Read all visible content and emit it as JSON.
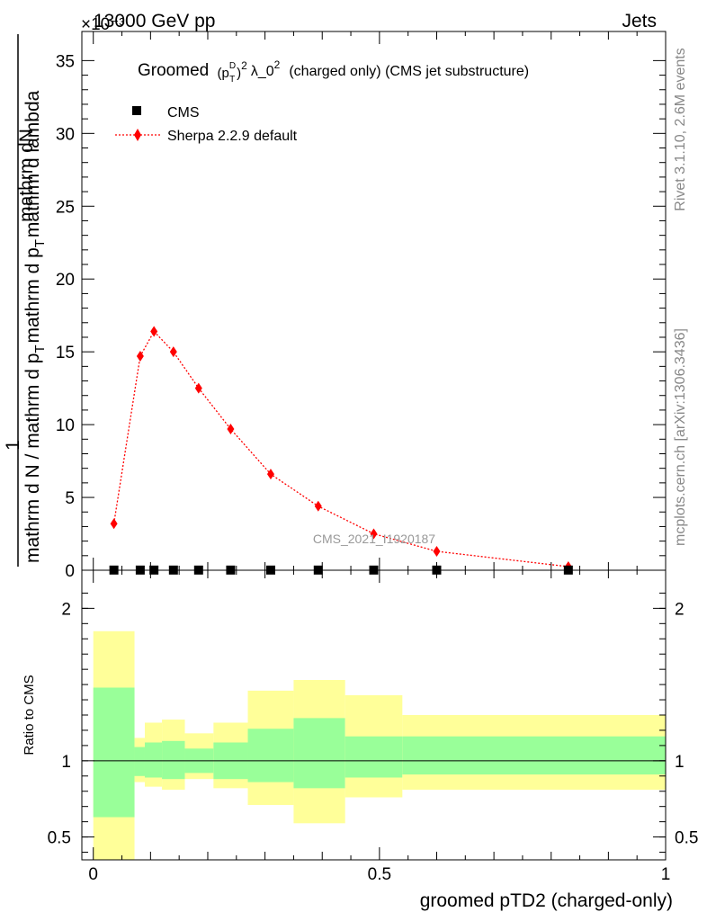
{
  "header": {
    "left": "13000 GeV pp",
    "right": "Jets",
    "exponent_label": "×10⁻³"
  },
  "side_labels": {
    "rivet": "Rivet 3.1.10,  2.6M events",
    "mcplots": "mcplots.cern.ch [arXiv:1306.3436]"
  },
  "watermark": "CMS_2021_I1920187",
  "colors": {
    "sherpa": "#ff0000",
    "cms": "#000000",
    "band_inner": "#99ff99",
    "band_outer": "#ffff99"
  },
  "chart_data": [
    {
      "type": "line",
      "title_parts": [
        "Groomed",
        "(p",
        "D",
        "T",
        ")",
        "2",
        "λ_0",
        "2",
        "(charged only) (CMS jet substructure)"
      ],
      "ylabel_num": "mathrm dN",
      "ylabel_one": "1",
      "ylabel_den": "mathrm d N / mathrm d p",
      "ylabel_den_sub1": "T",
      "ylabel_den_mid": "mathrm d p",
      "ylabel_den_sub2": "T",
      "ylabel_den_end": "mathrm d lambda",
      "ylim": [
        0,
        37
      ],
      "yticks": [
        0,
        5,
        10,
        15,
        20,
        25,
        30,
        35
      ],
      "ytick_labels": [
        "0",
        "5",
        "10",
        "15",
        "20",
        "25",
        "30",
        "35"
      ],
      "xlim": [
        -0.02,
        1.0
      ],
      "legend": [
        {
          "name": "CMS",
          "marker": "square"
        },
        {
          "name": "Sherpa 2.2.9 default",
          "marker": "diamond"
        }
      ],
      "series": [
        {
          "name": "Sherpa 2.2.9 default",
          "x": [
            0.036,
            0.082,
            0.106,
            0.14,
            0.184,
            0.24,
            0.31,
            0.393,
            0.49,
            0.6,
            0.83
          ],
          "y": [
            3.2,
            14.7,
            16.4,
            15.0,
            12.5,
            9.7,
            6.6,
            4.4,
            2.5,
            1.3,
            0.25
          ]
        },
        {
          "name": "CMS",
          "x": [
            0.036,
            0.082,
            0.106,
            0.14,
            0.184,
            0.24,
            0.31,
            0.393,
            0.49,
            0.6,
            0.83
          ],
          "y": [
            0.012,
            0.012,
            0.012,
            0.012,
            0.012,
            0.012,
            0.012,
            0.012,
            0.012,
            0.012,
            0.012
          ]
        }
      ]
    },
    {
      "type": "area",
      "ylabel": "Ratio to CMS",
      "xlabel": "groomed pTD2 (charged-only)",
      "xlim": [
        -0.02,
        1.0
      ],
      "ylim": [
        0.35,
        2.25
      ],
      "xticks": [
        0,
        0.5,
        1
      ],
      "xtick_labels": [
        "0",
        "0.5",
        "1"
      ],
      "yticks": [
        0.5,
        1,
        2
      ],
      "ytick_labels": [
        "0.5",
        "1",
        "2"
      ],
      "reference": 1,
      "bins": [
        {
          "lo": 0.0,
          "hi": 0.072,
          "in_lo": 0.63,
          "in_hi": 1.48,
          "out_lo": 0.0,
          "out_hi": 1.85
        },
        {
          "lo": 0.072,
          "hi": 0.09,
          "in_lo": 0.9,
          "in_hi": 1.09,
          "out_lo": 0.86,
          "out_hi": 1.15
        },
        {
          "lo": 0.09,
          "hi": 0.12,
          "in_lo": 0.89,
          "in_hi": 1.12,
          "out_lo": 0.83,
          "out_hi": 1.25
        },
        {
          "lo": 0.12,
          "hi": 0.16,
          "in_lo": 0.88,
          "in_hi": 1.13,
          "out_lo": 0.81,
          "out_hi": 1.27
        },
        {
          "lo": 0.16,
          "hi": 0.21,
          "in_lo": 0.92,
          "in_hi": 1.08,
          "out_lo": 0.88,
          "out_hi": 1.18
        },
        {
          "lo": 0.21,
          "hi": 0.27,
          "in_lo": 0.88,
          "in_hi": 1.12,
          "out_lo": 0.82,
          "out_hi": 1.25
        },
        {
          "lo": 0.27,
          "hi": 0.35,
          "in_lo": 0.86,
          "in_hi": 1.21,
          "out_lo": 0.71,
          "out_hi": 1.46
        },
        {
          "lo": 0.35,
          "hi": 0.44,
          "in_lo": 0.82,
          "in_hi": 1.28,
          "out_lo": 0.59,
          "out_hi": 1.53
        },
        {
          "lo": 0.44,
          "hi": 0.54,
          "in_lo": 0.89,
          "in_hi": 1.16,
          "out_lo": 0.76,
          "out_hi": 1.43
        },
        {
          "lo": 0.54,
          "hi": 1.0,
          "in_lo": 0.91,
          "in_hi": 1.16,
          "out_lo": 0.81,
          "out_hi": 1.3
        }
      ]
    }
  ]
}
